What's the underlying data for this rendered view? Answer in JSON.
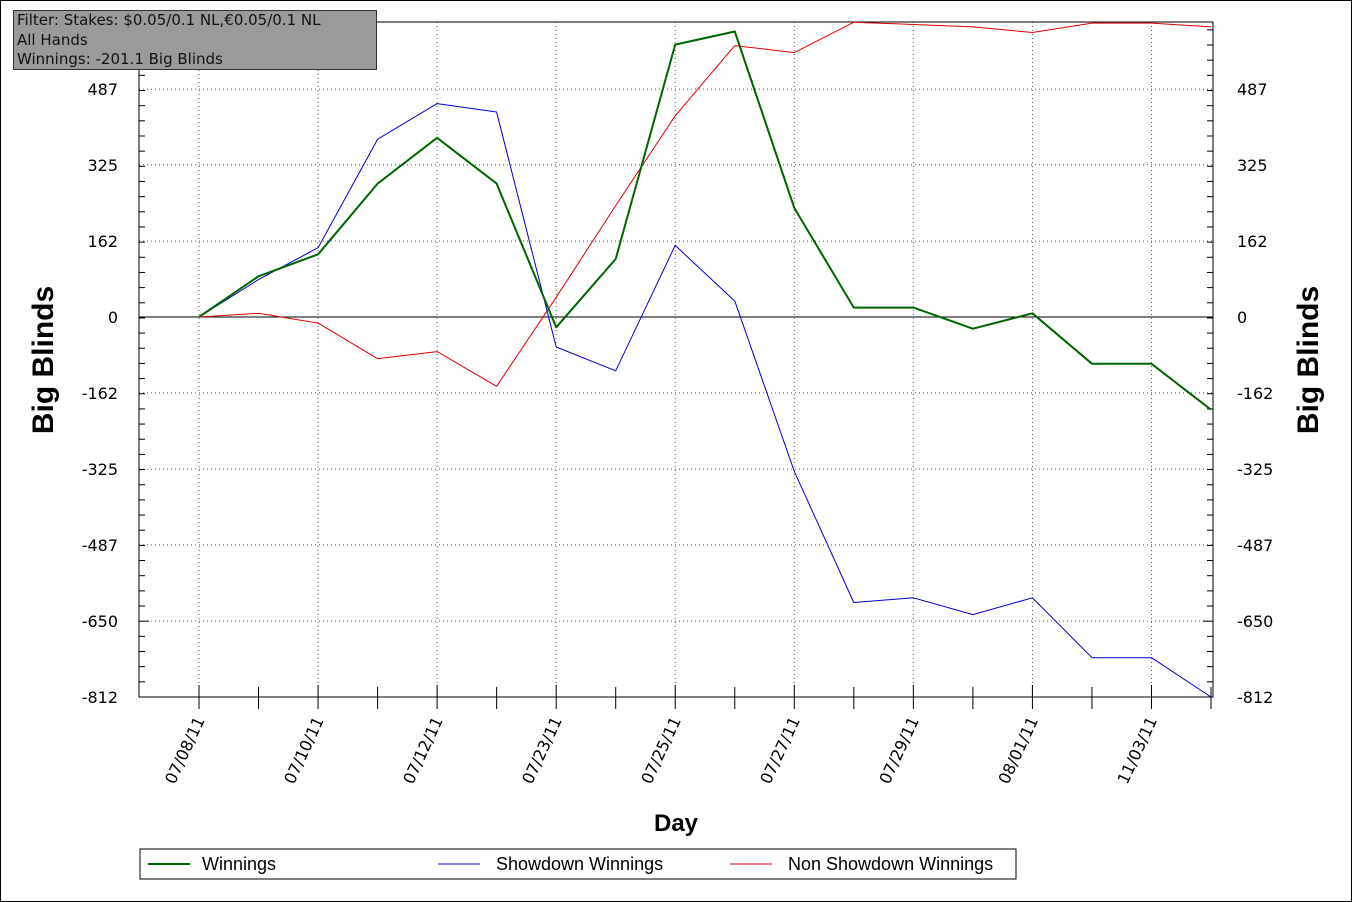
{
  "filter_box": {
    "line1": "Filter: Stakes: $0.05/0.1 NL,€0.05/0.1 NL",
    "line2": "All Hands",
    "line3": "Winnings: -201.1 Big Blinds"
  },
  "chart_data": {
    "type": "line",
    "title": "",
    "xlabel": "Day",
    "ylabel_left": "Big Blinds",
    "ylabel_right": "Big Blinds",
    "ylim": [
      -812,
      630
    ],
    "y_ticks": [
      -812,
      -650,
      -487,
      -325,
      -162,
      0,
      162,
      325,
      487
    ],
    "x_points": 18,
    "x_tick_labels": [
      {
        "index": 0,
        "label": "07/08/11"
      },
      {
        "index": 2,
        "label": "07/10/11"
      },
      {
        "index": 4,
        "label": "07/12/11"
      },
      {
        "index": 6,
        "label": "07/23/11"
      },
      {
        "index": 8,
        "label": "07/25/11"
      },
      {
        "index": 10,
        "label": "07/27/11"
      },
      {
        "index": 12,
        "label": "07/29/11"
      },
      {
        "index": 14,
        "label": "08/01/11"
      },
      {
        "index": 16,
        "label": "11/03/11"
      }
    ],
    "grid": true,
    "legend_position": "bottom",
    "series": [
      {
        "name": "Winnings",
        "color": "#006400",
        "values": [
          0,
          87,
          134,
          285,
          383,
          285,
          -22,
          124,
          582,
          610,
          233,
          20,
          20,
          -25,
          8,
          -100,
          -100,
          -198
        ]
      },
      {
        "name": "Showdown Winnings",
        "color": "#0000cc",
        "values": [
          0,
          80,
          148,
          380,
          456,
          438,
          -64,
          -115,
          153,
          34,
          -330,
          -610,
          -600,
          -636,
          -600,
          -728,
          -728,
          -812
        ]
      },
      {
        "name": "Non Showdown Winnings",
        "color": "#dd0000",
        "values": [
          0,
          8,
          -13,
          -89,
          -74,
          -148,
          42,
          238,
          430,
          580,
          565,
          630,
          625,
          620,
          608,
          628,
          628,
          620
        ]
      }
    ]
  }
}
